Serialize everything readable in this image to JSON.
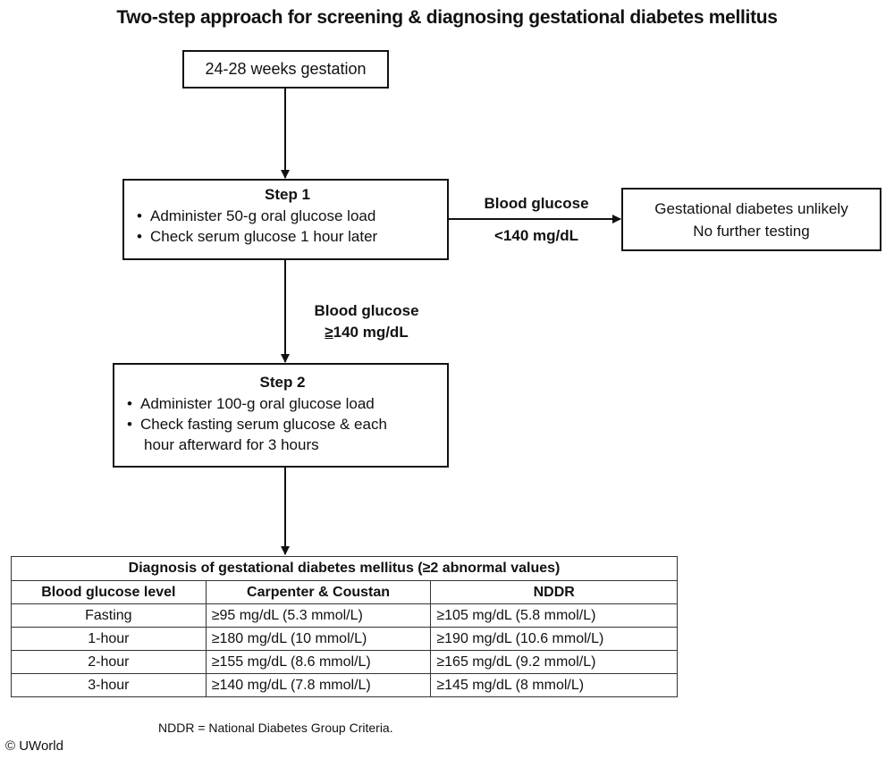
{
  "title": "Two-step approach for screening & diagnosing gestational diabetes mellitus",
  "start_box": "24-28 weeks gestation",
  "step1": {
    "title": "Step 1",
    "bullets": [
      "Administer 50-g oral glucose load",
      "Check serum glucose 1 hour later"
    ]
  },
  "low_branch": {
    "label_line1": "Blood glucose",
    "label_line2": "<140 mg/dL"
  },
  "unlikely_box": {
    "line1": "Gestational diabetes unlikely",
    "line2": "No further testing"
  },
  "high_branch": {
    "label_line1": "Blood glucose",
    "label_ge": "≥",
    "label_rest": "140 mg/dL"
  },
  "step2": {
    "title": "Step 2",
    "bullet1": "Administer 100-g oral glucose load",
    "bullet2_line1": "Check fasting serum glucose & each",
    "bullet2_line2": "hour afterward for 3 hours"
  },
  "criteria_table": {
    "caption": "Diagnosis of gestational diabetes mellitus (≥2 abnormal values)",
    "headers": [
      "Blood glucose level",
      "Carpenter  & Coustan",
      "NDDR"
    ],
    "rows": [
      [
        "Fasting",
        "≥95 mg/dL (5.3 mmol/L)",
        "≥105 mg/dL (5.8 mmol/L)"
      ],
      [
        "1-hour",
        "≥180 mg/dL (10 mmol/L)",
        "≥190 mg/dL (10.6 mmol/L)"
      ],
      [
        "2-hour",
        "≥155 mg/dL (8.6 mmol/L)",
        "≥165 mg/dL (9.2 mmol/L)"
      ],
      [
        "3-hour",
        "≥140 mg/dL (7.8 mmol/L)",
        "≥145 mg/dL (8 mmol/L)"
      ]
    ]
  },
  "footnote": "NDDR = National Diabetes Group Criteria.",
  "copyright": "© UWorld"
}
